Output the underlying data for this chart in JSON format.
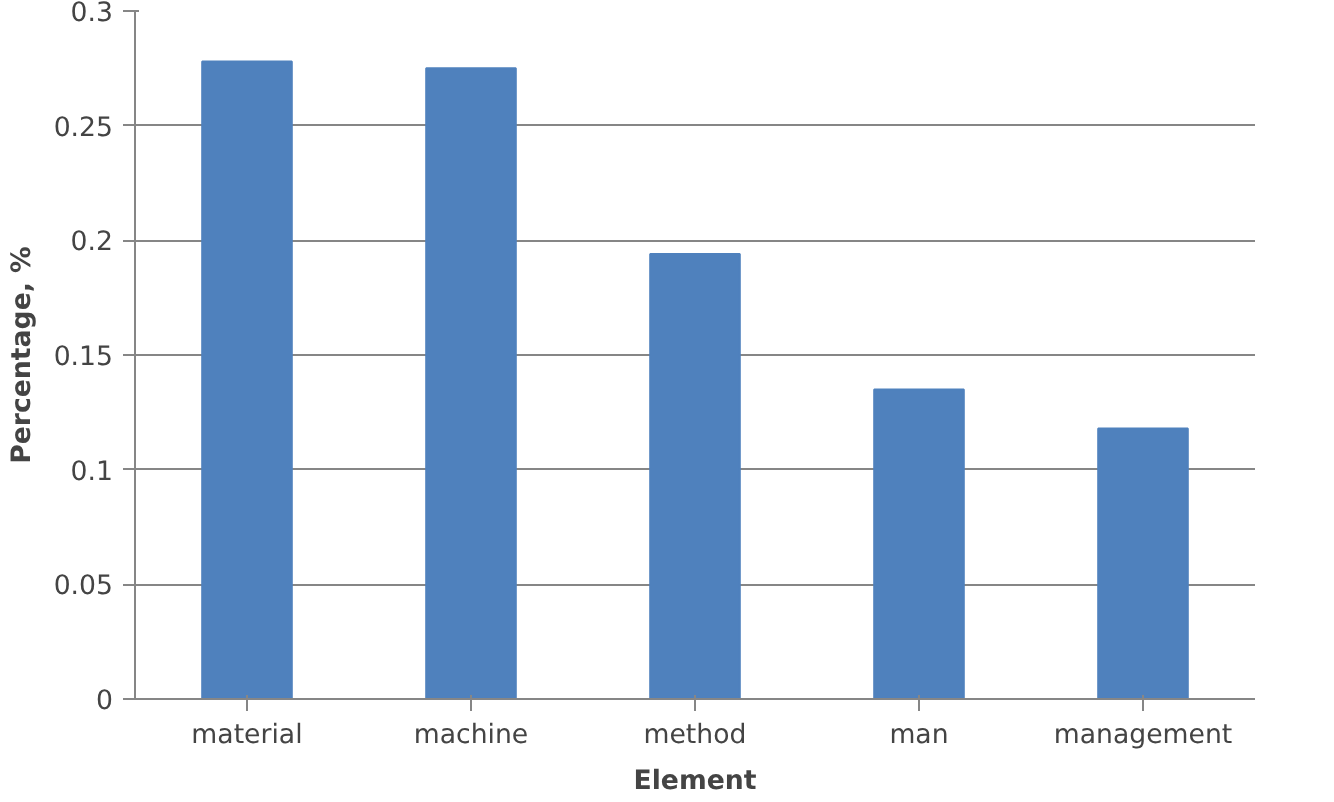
{
  "chart_data": {
    "type": "bar",
    "xlabel": "Element",
    "ylabel": "Percentage, %",
    "categories": [
      "material",
      "machine",
      "method",
      "man",
      "management"
    ],
    "values": [
      0.278,
      0.275,
      0.194,
      0.135,
      0.118
    ],
    "color": "#4f81bd",
    "ylim": [
      0,
      0.3
    ],
    "yticks": [
      0,
      0.05,
      0.1,
      0.15,
      0.2,
      0.25,
      0.3
    ],
    "grid": "y"
  }
}
